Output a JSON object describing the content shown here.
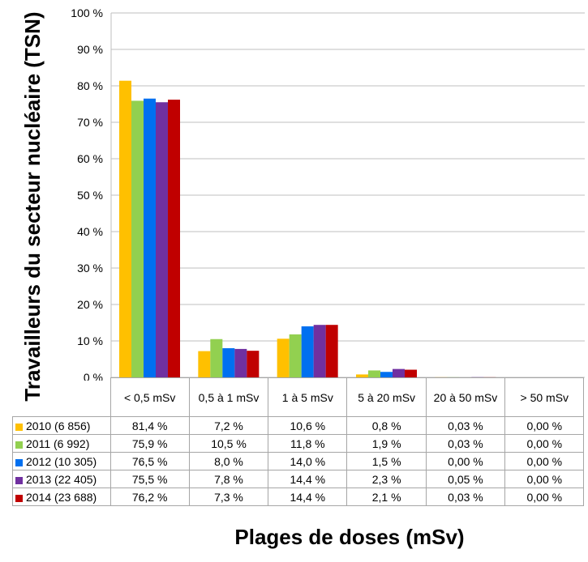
{
  "chart_data": {
    "type": "bar",
    "title": "",
    "ylabel": "Travailleurs du secteur nucléaire (TSN)",
    "xlabel": "Plages de doses (mSv)",
    "ylim": [
      0,
      100
    ],
    "yticks": [
      "0 %",
      "10 %",
      "20 %",
      "30 %",
      "40 %",
      "50 %",
      "60 %",
      "70 %",
      "80 %",
      "90 %",
      "100 %"
    ],
    "grid": true,
    "legend": "data-table",
    "categories": [
      "< 0,5 mSv",
      "0,5 à 1 mSv",
      "1 à 5 mSv",
      "5 à 20 mSv",
      "20 à 50 mSv",
      "> 50 mSv"
    ],
    "series": [
      {
        "name": "2010 (6 856)",
        "color": "#ffc000",
        "values": [
          81.4,
          7.2,
          10.6,
          0.8,
          0.03,
          0.0
        ],
        "labels": [
          "81,4 %",
          "7,2 %",
          "10,6 %",
          "0,8 %",
          "0,03 %",
          "0,00 %"
        ]
      },
      {
        "name": "2011 (6 992)",
        "color": "#92d050",
        "values": [
          75.9,
          10.5,
          11.8,
          1.9,
          0.03,
          0.0
        ],
        "labels": [
          "75,9 %",
          "10,5 %",
          "11,8 %",
          "1,9 %",
          "0,03 %",
          "0,00 %"
        ]
      },
      {
        "name": "2012 (10 305)",
        "color": "#0070f0",
        "values": [
          76.5,
          8.0,
          14.0,
          1.5,
          0.0,
          0.0
        ],
        "labels": [
          "76,5 %",
          "8,0 %",
          "14,0 %",
          "1,5 %",
          "0,00 %",
          "0,00 %"
        ]
      },
      {
        "name": "2013 (22 405)",
        "color": "#7030a0",
        "values": [
          75.5,
          7.8,
          14.4,
          2.3,
          0.05,
          0.0
        ],
        "labels": [
          "75,5 %",
          "7,8 %",
          "14,4 %",
          "2,3 %",
          "0,05 %",
          "0,00 %"
        ]
      },
      {
        "name": "2014 (23 688)",
        "color": "#c00000",
        "values": [
          76.2,
          7.3,
          14.4,
          2.1,
          0.03,
          0.0
        ],
        "labels": [
          "76,2 %",
          "7,3 %",
          "14,4 %",
          "2,1 %",
          "0,03 %",
          "0,00 %"
        ]
      }
    ]
  }
}
